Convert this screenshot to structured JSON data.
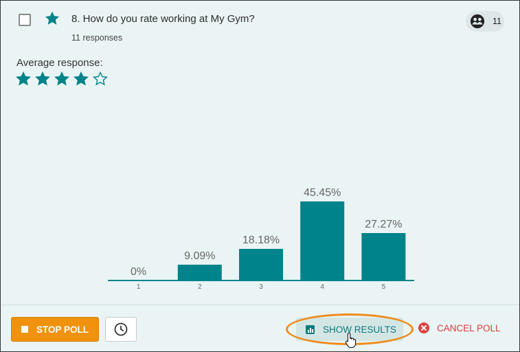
{
  "question": {
    "number_and_text": "8. How do you rate working at My Gym?",
    "responses": "11 responses",
    "participant_count": "11"
  },
  "average": {
    "label": "Average response:",
    "rating": 4,
    "max": 5
  },
  "chart_data": {
    "type": "bar",
    "categories": [
      "1",
      "2",
      "3",
      "4",
      "5"
    ],
    "values": [
      0,
      9.09,
      18.18,
      45.45,
      27.27
    ],
    "labels": [
      "0%",
      "9.09%",
      "18.18%",
      "45.45%",
      "27.27%"
    ],
    "ylim": [
      0,
      45.45
    ],
    "bar_color": "#00838a",
    "grid": false
  },
  "footer": {
    "stop_label": "STOP POLL",
    "show_results_label": "SHOW RESULTS",
    "cancel_label": "CANCEL POLL"
  },
  "colors": {
    "accent": "#00838a",
    "stop": "#f0920e",
    "cancel": "#d93a3a"
  },
  "icons": {
    "favorite": "star-icon",
    "participants": "participants-icon",
    "schedule": "clock-icon",
    "results": "bar-chart-icon",
    "cancel": "cancel-icon",
    "cursor": "hand-cursor-icon"
  }
}
